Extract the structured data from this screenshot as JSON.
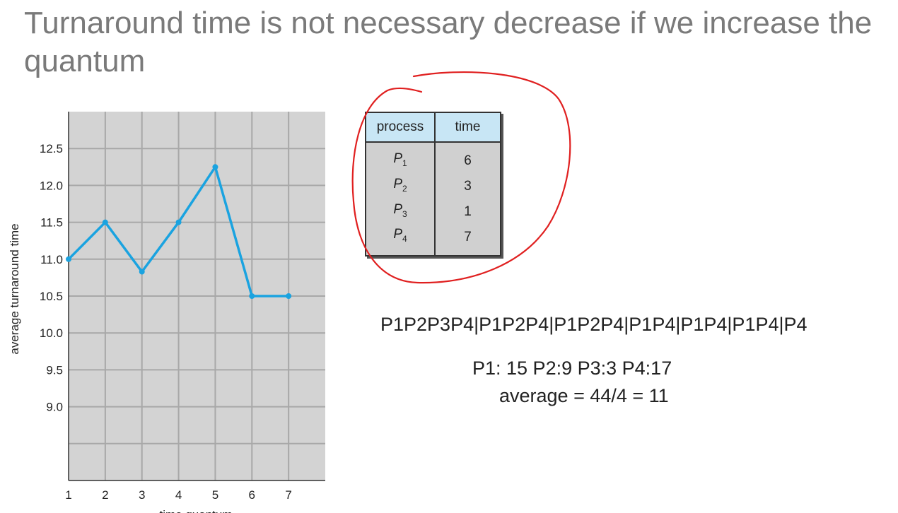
{
  "slide": {
    "title": "Turnaround time is not necessary decrease if we increase the quantum"
  },
  "chart_data": {
    "type": "line",
    "xlabel": "time quantum",
    "ylabel": "average turnaround time",
    "x": [
      1,
      2,
      3,
      4,
      5,
      6,
      7
    ],
    "series": [
      {
        "values": [
          11.0,
          11.5,
          10.83,
          11.5,
          12.25,
          10.5,
          10.5
        ]
      }
    ],
    "x_ticks": [
      "1",
      "2",
      "3",
      "4",
      "5",
      "6",
      "7"
    ],
    "y_ticks": [
      "12.5",
      "12.0",
      "11.5",
      "11.0",
      "10.5",
      "10.0",
      "9.5",
      "9.0"
    ],
    "xlim": [
      1,
      8
    ],
    "ylim": [
      8.0,
      13.0
    ],
    "grid": true,
    "line_color": "#1aa3e0",
    "grid_color": "#a8a8a8",
    "plot_background": "#d3d3d3"
  },
  "table": {
    "headers": [
      "process",
      "time"
    ],
    "rows": [
      {
        "name": "P",
        "sub": "1",
        "time": "6"
      },
      {
        "name": "P",
        "sub": "2",
        "time": "3"
      },
      {
        "name": "P",
        "sub": "3",
        "time": "1"
      },
      {
        "name": "P",
        "sub": "4",
        "time": "7"
      }
    ]
  },
  "annotation": {
    "color": "#e02020"
  },
  "calculation": {
    "sequence": "P1P2P3P4|P1P2P4|P1P2P4|P1P4|P1P4|P1P4|P4",
    "times": "P1: 15  P2:9  P3:3  P4:17",
    "average": "average = 44/4 = 11"
  }
}
